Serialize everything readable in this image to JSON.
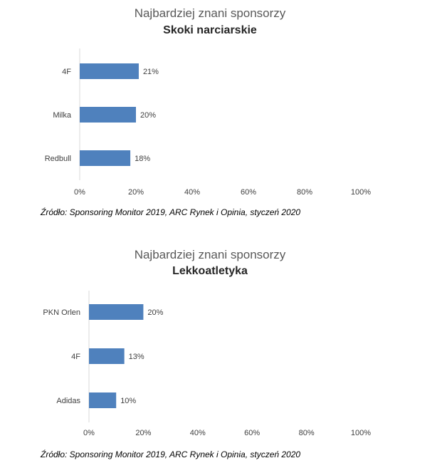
{
  "chart_data": [
    {
      "type": "bar",
      "orientation": "horizontal",
      "title": "Najbardziej znani sponsorzy",
      "subtitle": "Skoki narciarskie",
      "categories": [
        "4F",
        "Milka",
        "Redbull"
      ],
      "values": [
        21,
        20,
        18
      ],
      "value_labels": [
        "21%",
        "20%",
        "18%"
      ],
      "xlim": [
        0,
        100
      ],
      "xticks": [
        "0%",
        "20%",
        "40%",
        "60%",
        "80%",
        "100%"
      ],
      "bar_color": "#4F81BD",
      "source": "Źródło: Sponsoring Monitor 2019, ARC Rynek i Opinia, styczeń 2020"
    },
    {
      "type": "bar",
      "orientation": "horizontal",
      "title": "Najbardziej znani sponsorzy",
      "subtitle": "Lekkoatletyka",
      "categories": [
        "PKN Orlen",
        "4F",
        "Adidas"
      ],
      "values": [
        20,
        13,
        10
      ],
      "value_labels": [
        "20%",
        "13%",
        "10%"
      ],
      "xlim": [
        0,
        100
      ],
      "xticks": [
        "0%",
        "20%",
        "40%",
        "60%",
        "80%",
        "100%"
      ],
      "bar_color": "#4F81BD",
      "source": "Źródło: Sponsoring Monitor 2019, ARC Rynek i Opinia, styczeń 2020"
    }
  ]
}
